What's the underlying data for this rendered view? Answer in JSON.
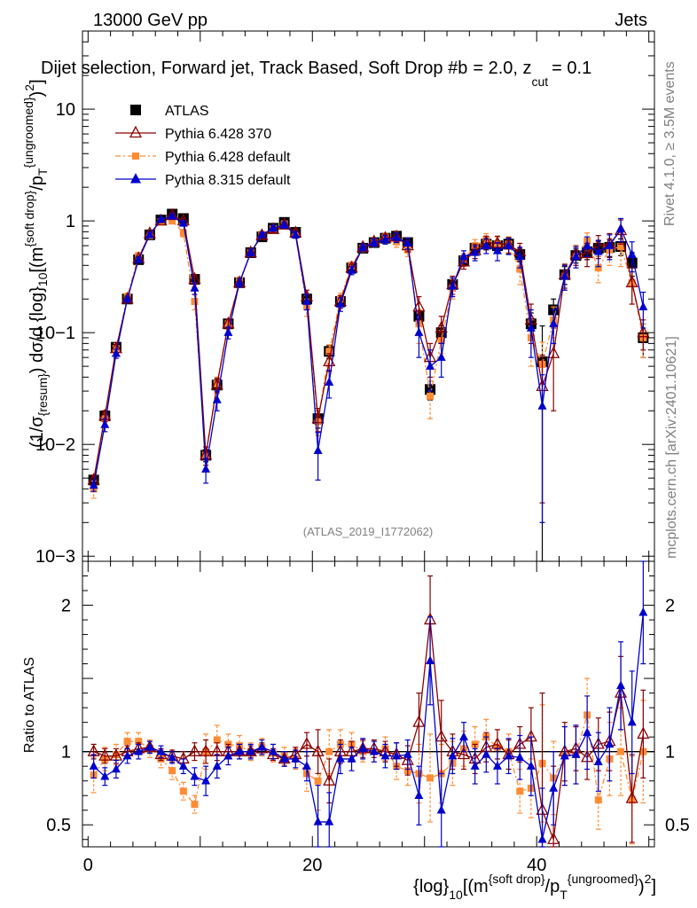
{
  "header": {
    "energy_label": "13000 GeV pp",
    "process_label": "Jets",
    "title": "Dijet selection, Forward jet, Track Based, Soft Drop #b",
    "title_suffix": "= 2.0, z",
    "title_sub": "cut",
    "title_tail": "= 0.1"
  },
  "side_labels": {
    "rivet": "Rivet 4.1.0, ≥ 3.5M events",
    "mcplots": "mcplots.cern.ch [arXiv:2401.10621]"
  },
  "watermark": "(ATLAS_2019_I1772062)",
  "axis_text": {
    "ylabel_main": "(1/σ{resum}) dσ/d {log}10[(m{soft drop}/pT{ungroomed})2]",
    "ylabel_ratio": "Ratio to ATLAS",
    "xlabel": "{log}10[(m{soft drop}/pT{ungroomed})2]"
  },
  "colors": {
    "atlas": "#000000",
    "pythia6_370": "#8b0000",
    "pythia6_default": "#ff8c33",
    "pythia8": "#0000cc"
  },
  "chart_data": [
    {
      "type": "scatter",
      "panel": "main",
      "title": "Dijet selection, Forward jet, Track Based, Soft Drop #b = 2.0, zcut = 0.1",
      "yscale": "log",
      "xlim": [
        -0.5,
        50.5
      ],
      "ylim": [
        0.0009,
        50
      ],
      "x_ticks": [
        0,
        20,
        40
      ],
      "y_ticks": [
        0.001,
        0.01,
        0.1,
        1,
        10
      ],
      "y_tick_labels": [
        "10−3",
        "10−2",
        "10−1",
        "1",
        "10"
      ],
      "legend": [
        "ATLAS",
        "Pythia 6.428 370",
        "Pythia 6.428 default",
        "Pythia 8.315 default"
      ],
      "legend_placement": "top-left",
      "x": [
        0.5,
        1.5,
        2.5,
        3.5,
        4.5,
        5.5,
        6.5,
        7.5,
        8.5,
        9.5,
        10.5,
        11.5,
        12.5,
        13.5,
        14.5,
        15.5,
        16.5,
        17.5,
        18.5,
        19.5,
        20.5,
        21.5,
        22.5,
        23.5,
        24.5,
        25.5,
        26.5,
        27.5,
        28.5,
        29.5,
        30.5,
        31.5,
        32.5,
        33.5,
        34.5,
        35.5,
        36.5,
        37.5,
        38.5,
        39.5,
        40.5,
        41.5,
        42.5,
        43.5,
        44.5,
        45.5,
        46.5,
        47.5,
        48.5,
        49.5
      ],
      "series": [
        {
          "name": "ATLAS",
          "marker": "square",
          "color": "#000000",
          "values": [
            0.0048,
            0.018,
            0.074,
            0.2,
            0.45,
            0.75,
            1.02,
            1.15,
            1.05,
            0.3,
            0.008,
            0.034,
            0.12,
            0.28,
            0.52,
            0.72,
            0.86,
            0.97,
            0.79,
            0.2,
            0.017,
            0.068,
            0.19,
            0.38,
            0.57,
            0.64,
            0.7,
            0.73,
            0.64,
            0.14,
            0.031,
            0.1,
            0.27,
            0.44,
            0.57,
            0.62,
            0.6,
            0.62,
            0.5,
            0.12,
            0.055,
            0.16,
            0.33,
            0.49,
            0.53,
            0.57,
            0.58,
            0.59,
            0.42,
            0.09
          ],
          "errors": [
            0.0005,
            0.002,
            0.006,
            0.012,
            0.02,
            0.03,
            0.04,
            0.05,
            0.05,
            0.02,
            0.001,
            0.004,
            0.01,
            0.02,
            0.03,
            0.03,
            0.03,
            0.04,
            0.04,
            0.02,
            0.003,
            0.009,
            0.015,
            0.02,
            0.03,
            0.03,
            0.04,
            0.04,
            0.05,
            0.02,
            0.006,
            0.015,
            0.03,
            0.04,
            0.05,
            0.06,
            0.06,
            0.06,
            0.06,
            0.03,
            0.06,
            0.04,
            0.06,
            0.07,
            0.08,
            0.09,
            0.1,
            0.1,
            0.1,
            0.03
          ]
        },
        {
          "name": "Pythia 6.428 370",
          "marker": "open-triangle",
          "color": "#8b0000",
          "values": [
            0.0048,
            0.018,
            0.072,
            0.2,
            0.46,
            0.77,
            1.0,
            1.12,
            1.0,
            0.3,
            0.008,
            0.034,
            0.12,
            0.28,
            0.52,
            0.74,
            0.84,
            0.92,
            0.78,
            0.21,
            0.017,
            0.055,
            0.19,
            0.38,
            0.58,
            0.65,
            0.7,
            0.72,
            0.6,
            0.17,
            0.06,
            0.11,
            0.27,
            0.43,
            0.54,
            0.64,
            0.63,
            0.61,
            0.53,
            0.13,
            0.033,
            0.065,
            0.33,
            0.5,
            0.51,
            0.6,
            0.62,
            0.82,
            0.28,
            0.1
          ],
          "errors": [
            0.0005,
            0.002,
            0.006,
            0.012,
            0.02,
            0.03,
            0.04,
            0.05,
            0.05,
            0.03,
            0.0015,
            0.005,
            0.012,
            0.025,
            0.035,
            0.04,
            0.05,
            0.06,
            0.05,
            0.03,
            0.004,
            0.01,
            0.025,
            0.03,
            0.04,
            0.05,
            0.06,
            0.07,
            0.07,
            0.04,
            0.02,
            0.03,
            0.05,
            0.06,
            0.08,
            0.09,
            0.1,
            0.1,
            0.1,
            0.05,
            0.03,
            0.045,
            0.08,
            0.1,
            0.12,
            0.14,
            0.15,
            0.2,
            0.1,
            0.03
          ]
        },
        {
          "name": "Pythia 6.428 default",
          "marker": "square",
          "color": "#ff8c33",
          "values": [
            0.004,
            0.017,
            0.072,
            0.21,
            0.49,
            0.74,
            0.98,
            1.0,
            0.78,
            0.19,
            0.008,
            0.035,
            0.12,
            0.29,
            0.52,
            0.76,
            0.85,
            0.94,
            0.75,
            0.17,
            0.016,
            0.068,
            0.2,
            0.4,
            0.57,
            0.64,
            0.71,
            0.65,
            0.55,
            0.12,
            0.027,
            0.085,
            0.25,
            0.45,
            0.6,
            0.68,
            0.62,
            0.62,
            0.37,
            0.09,
            0.052,
            0.13,
            0.32,
            0.48,
            0.66,
            0.38,
            0.55,
            0.59,
            0.28,
            0.09
          ],
          "errors": [
            0.0007,
            0.002,
            0.008,
            0.015,
            0.03,
            0.04,
            0.05,
            0.06,
            0.06,
            0.03,
            0.0015,
            0.005,
            0.012,
            0.025,
            0.035,
            0.04,
            0.05,
            0.06,
            0.05,
            0.03,
            0.004,
            0.01,
            0.025,
            0.03,
            0.04,
            0.05,
            0.06,
            0.07,
            0.07,
            0.04,
            0.01,
            0.02,
            0.05,
            0.06,
            0.08,
            0.09,
            0.1,
            0.1,
            0.1,
            0.04,
            0.03,
            0.04,
            0.08,
            0.1,
            0.12,
            0.1,
            0.15,
            0.2,
            0.1,
            0.03
          ]
        },
        {
          "name": "Pythia 8.315 default",
          "marker": "triangle",
          "color": "#0000cc",
          "values": [
            0.0043,
            0.015,
            0.065,
            0.2,
            0.45,
            0.75,
            1.03,
            1.1,
            0.95,
            0.25,
            0.006,
            0.025,
            0.1,
            0.28,
            0.52,
            0.75,
            0.86,
            0.92,
            0.75,
            0.19,
            0.0088,
            0.036,
            0.18,
            0.36,
            0.58,
            0.64,
            0.68,
            0.71,
            0.63,
            0.1,
            0.05,
            0.06,
            0.26,
            0.48,
            0.52,
            0.6,
            0.54,
            0.6,
            0.48,
            0.11,
            0.022,
            0.12,
            0.32,
            0.48,
            0.6,
            0.53,
            0.6,
            0.85,
            0.5,
            0.17
          ],
          "errors": [
            0.0005,
            0.002,
            0.006,
            0.012,
            0.02,
            0.03,
            0.04,
            0.05,
            0.05,
            0.03,
            0.0015,
            0.005,
            0.012,
            0.025,
            0.035,
            0.04,
            0.05,
            0.06,
            0.05,
            0.03,
            0.004,
            0.01,
            0.025,
            0.03,
            0.04,
            0.05,
            0.06,
            0.07,
            0.07,
            0.04,
            0.02,
            0.02,
            0.05,
            0.06,
            0.08,
            0.09,
            0.1,
            0.1,
            0.1,
            0.05,
            0.02,
            0.04,
            0.08,
            0.1,
            0.12,
            0.14,
            0.15,
            0.2,
            0.15,
            0.06
          ]
        }
      ]
    },
    {
      "type": "scatter",
      "panel": "ratio",
      "ylabel": "Ratio to ATLAS",
      "xlabel": "{log}10[(m{soft drop}/pT{ungroomed})2]",
      "xlim": [
        -0.5,
        50.5
      ],
      "ylim": [
        0.35,
        2.3
      ],
      "x_ticks": [
        0,
        20,
        40
      ],
      "y_ticks": [
        0.5,
        1,
        2
      ],
      "reference_line": 1,
      "x": [
        0.5,
        1.5,
        2.5,
        3.5,
        4.5,
        5.5,
        6.5,
        7.5,
        8.5,
        9.5,
        10.5,
        11.5,
        12.5,
        13.5,
        14.5,
        15.5,
        16.5,
        17.5,
        18.5,
        19.5,
        20.5,
        21.5,
        22.5,
        23.5,
        24.5,
        25.5,
        26.5,
        27.5,
        28.5,
        29.5,
        30.5,
        31.5,
        32.5,
        33.5,
        34.5,
        35.5,
        36.5,
        37.5,
        38.5,
        39.5,
        40.5,
        41.5,
        42.5,
        43.5,
        44.5,
        45.5,
        46.5,
        47.5,
        48.5,
        49.5
      ],
      "series": [
        {
          "name": "Pythia 6.428 370",
          "marker": "open-triangle",
          "color": "#8b0000",
          "values": [
            1.0,
            0.97,
            0.97,
            1.0,
            1.02,
            1.03,
            0.98,
            0.97,
            0.95,
            1.0,
            1.0,
            1.0,
            1.0,
            1.0,
            1.0,
            1.02,
            0.98,
            0.95,
            0.98,
            1.05,
            1.0,
            0.8,
            1.0,
            1.0,
            1.02,
            1.02,
            1.0,
            0.98,
            0.94,
            1.2,
            1.9,
            1.1,
            1.0,
            0.98,
            0.95,
            1.03,
            1.05,
            0.98,
            1.05,
            1.1,
            0.6,
            0.4,
            1.0,
            1.02,
            0.96,
            1.05,
            1.07,
            1.4,
            0.68,
            1.12
          ],
          "errors": [
            0.05,
            0.05,
            0.05,
            0.04,
            0.04,
            0.04,
            0.04,
            0.04,
            0.05,
            0.06,
            0.08,
            0.06,
            0.05,
            0.05,
            0.04,
            0.04,
            0.04,
            0.05,
            0.05,
            0.08,
            0.15,
            0.15,
            0.08,
            0.07,
            0.06,
            0.06,
            0.07,
            0.08,
            0.1,
            0.2,
            0.3,
            0.25,
            0.12,
            0.1,
            0.1,
            0.1,
            0.1,
            0.1,
            0.12,
            0.2,
            0.8,
            0.5,
            0.2,
            0.15,
            0.15,
            0.18,
            0.2,
            0.25,
            0.3,
            0.3
          ]
        },
        {
          "name": "Pythia 6.428 default",
          "marker": "square",
          "color": "#ff8c33",
          "values": [
            0.84,
            0.95,
            0.98,
            1.07,
            1.07,
            1.02,
            0.95,
            0.87,
            0.73,
            0.64,
            1.0,
            1.08,
            1.05,
            1.04,
            1.0,
            1.03,
            0.99,
            0.97,
            0.95,
            0.85,
            0.8,
            1.0,
            1.05,
            1.05,
            1.0,
            1.0,
            1.02,
            0.9,
            0.87,
            0.85,
            0.82,
            0.85,
            0.92,
            1.02,
            1.05,
            1.1,
            1.03,
            1.0,
            0.73,
            0.75,
            0.92,
            0.82,
            0.97,
            0.98,
            1.25,
            0.67,
            0.95,
            1.0,
            0.67,
            1.0
          ],
          "errors": [
            0.12,
            0.08,
            0.07,
            0.06,
            0.06,
            0.06,
            0.06,
            0.06,
            0.06,
            0.06,
            0.12,
            0.1,
            0.07,
            0.07,
            0.06,
            0.06,
            0.06,
            0.06,
            0.07,
            0.12,
            0.2,
            0.15,
            0.1,
            0.08,
            0.07,
            0.07,
            0.08,
            0.09,
            0.1,
            0.2,
            0.3,
            0.2,
            0.15,
            0.12,
            0.12,
            0.12,
            0.12,
            0.12,
            0.15,
            0.2,
            0.4,
            0.25,
            0.2,
            0.2,
            0.25,
            0.2,
            0.25,
            0.3,
            0.3,
            0.35
          ]
        },
        {
          "name": "Pythia 8.315 default",
          "marker": "triangle",
          "color": "#0000cc",
          "values": [
            0.9,
            0.83,
            0.88,
            0.97,
            1.0,
            1.03,
            1.0,
            0.96,
            0.9,
            0.83,
            0.8,
            0.9,
            0.97,
            1.0,
            1.0,
            1.03,
            1.0,
            0.95,
            0.95,
            0.9,
            0.52,
            0.52,
            0.95,
            0.95,
            1.02,
            1.0,
            0.97,
            0.97,
            0.98,
            0.7,
            1.62,
            0.6,
            0.97,
            1.1,
            0.9,
            0.98,
            0.9,
            0.97,
            0.96,
            0.9,
            0.4,
            0.75,
            0.97,
            0.98,
            1.13,
            0.93,
            1.05,
            1.45,
            1.2,
            1.95
          ],
          "errors": [
            0.08,
            0.06,
            0.06,
            0.05,
            0.05,
            0.04,
            0.04,
            0.04,
            0.05,
            0.06,
            0.1,
            0.08,
            0.06,
            0.05,
            0.05,
            0.05,
            0.05,
            0.05,
            0.06,
            0.1,
            0.25,
            0.2,
            0.1,
            0.08,
            0.07,
            0.07,
            0.08,
            0.09,
            0.1,
            0.2,
            0.3,
            0.25,
            0.12,
            0.1,
            0.12,
            0.12,
            0.12,
            0.12,
            0.15,
            0.2,
            0.35,
            0.25,
            0.2,
            0.2,
            0.25,
            0.2,
            0.25,
            0.3,
            0.35,
            0.35
          ]
        }
      ]
    }
  ]
}
